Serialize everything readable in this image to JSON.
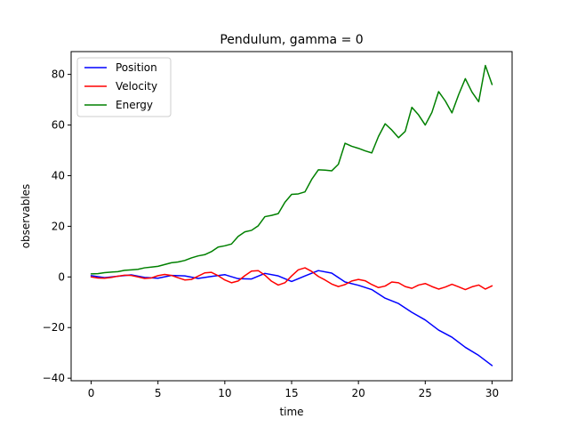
{
  "chart_data": {
    "type": "line",
    "title": "Pendulum, gamma = 0",
    "xlabel": "time",
    "ylabel": "observables",
    "xlim": [
      -1.5,
      31.5
    ],
    "ylim": [
      -41,
      89
    ],
    "xticks": [
      0,
      5,
      10,
      15,
      20,
      25,
      30
    ],
    "xtick_labels": [
      "0",
      "5",
      "10",
      "15",
      "20",
      "25",
      "30"
    ],
    "yticks": [
      -40,
      -20,
      0,
      20,
      40,
      60,
      80
    ],
    "ytick_labels": [
      "−40",
      "−20",
      "0",
      "20",
      "40",
      "60",
      "80"
    ],
    "grid": false,
    "legend_position": "top-left",
    "series": [
      {
        "name": "Position",
        "color": "#0000ff",
        "x": [
          0,
          1,
          2,
          3,
          4,
          5,
          6,
          7,
          8,
          9,
          10,
          11,
          12,
          13,
          14,
          15,
          16,
          17,
          18,
          19,
          20,
          21,
          22,
          23,
          24,
          25,
          26,
          27,
          28,
          29,
          30
        ],
        "y": [
          0.5,
          -0.3,
          0.3,
          0.8,
          -0.2,
          -0.5,
          0.6,
          0.4,
          -0.6,
          0.2,
          0.9,
          -0.7,
          -0.8,
          1.4,
          0.4,
          -1.8,
          0.4,
          2.5,
          1.5,
          -2.0,
          -3.3,
          -5.0,
          -8.4,
          -10.5,
          -14.0,
          -17.0,
          -21.0,
          -23.8,
          -27.8,
          -31.0,
          -35.0
        ]
      },
      {
        "name": "Velocity",
        "color": "#ff0000",
        "x": [
          0,
          0.5,
          1,
          1.5,
          2,
          2.5,
          3,
          3.5,
          4,
          4.5,
          5,
          5.5,
          6,
          6.5,
          7,
          7.5,
          8,
          8.5,
          9,
          9.5,
          10,
          10.5,
          11,
          11.5,
          12,
          12.5,
          13,
          13.5,
          14,
          14.5,
          15,
          15.5,
          16,
          16.5,
          17,
          17.5,
          18,
          18.5,
          19,
          19.5,
          20,
          20.5,
          21,
          21.5,
          22,
          22.5,
          23,
          23.5,
          24,
          24.5,
          25,
          25.5,
          26,
          26.5,
          27,
          27.5,
          28,
          28.5,
          29,
          29.5,
          30
        ],
        "y": [
          0.0,
          -0.4,
          -0.5,
          -0.2,
          0.3,
          0.7,
          0.6,
          0.0,
          -0.6,
          -0.4,
          0.5,
          1.0,
          0.6,
          -0.3,
          -1.2,
          -1.0,
          0.3,
          1.6,
          1.8,
          0.5,
          -1.2,
          -2.3,
          -1.6,
          0.5,
          2.3,
          2.5,
          0.7,
          -1.7,
          -3.2,
          -2.3,
          0.4,
          2.8,
          3.6,
          2.2,
          0.2,
          -1.2,
          -2.8,
          -3.8,
          -3.0,
          -1.6,
          -1.0,
          -1.5,
          -3.0,
          -4.2,
          -3.6,
          -2.0,
          -2.3,
          -3.8,
          -4.5,
          -3.2,
          -2.6,
          -3.8,
          -4.8,
          -4.0,
          -2.9,
          -3.9,
          -5.0,
          -3.9,
          -3.2,
          -4.8,
          -3.5
        ]
      },
      {
        "name": "Energy",
        "color": "#008000",
        "x": [
          0,
          0.5,
          1,
          1.5,
          2,
          2.5,
          3,
          3.5,
          4,
          4.5,
          5,
          5.5,
          6,
          6.5,
          7,
          7.5,
          8,
          8.5,
          9,
          9.5,
          10,
          10.5,
          11,
          11.5,
          12,
          12.5,
          13,
          13.5,
          14,
          14.5,
          15,
          15.5,
          16,
          16.5,
          17,
          17.5,
          18,
          18.5,
          19,
          19.5,
          20,
          20.5,
          21,
          21.5,
          22,
          22.5,
          23,
          23.5,
          24,
          24.5,
          25,
          25.5,
          26,
          26.5,
          27,
          27.5,
          28,
          28.5,
          29,
          29.5,
          30
        ],
        "y": [
          1.2,
          1.3,
          1.7,
          1.9,
          2.1,
          2.6,
          2.8,
          3.0,
          3.6,
          3.9,
          4.2,
          4.9,
          5.6,
          5.9,
          6.5,
          7.5,
          8.3,
          8.8,
          10.0,
          11.8,
          12.3,
          13.0,
          16.0,
          17.8,
          18.4,
          20.2,
          23.8,
          24.3,
          25.0,
          29.5,
          32.6,
          32.8,
          33.6,
          38.5,
          42.3,
          42.2,
          41.9,
          44.5,
          52.8,
          51.6,
          50.8,
          49.8,
          49.0,
          55.5,
          60.5,
          58.0,
          55.0,
          57.5,
          67.0,
          64.0,
          60.0,
          65.0,
          73.2,
          69.5,
          64.8,
          72.0,
          78.3,
          73.0,
          69.2,
          83.5,
          76.0
        ]
      }
    ]
  }
}
